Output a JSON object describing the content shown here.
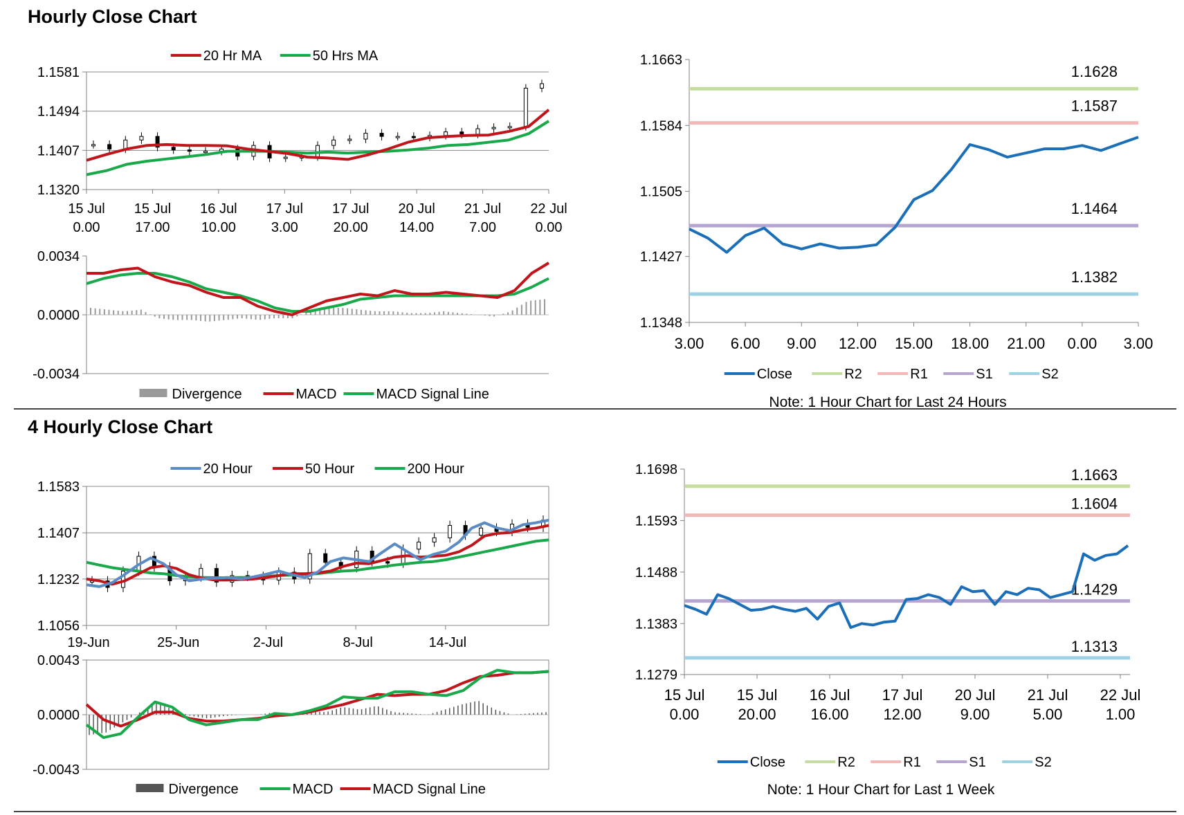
{
  "sections": {
    "hourly_title": "Hourly Close Chart",
    "four_hourly_title": "4 Hourly Close Chart"
  },
  "colors": {
    "red": "#C0151B",
    "green": "#19A84A",
    "blue": "#1A6FB8",
    "steel": "#5B8BC5",
    "r2": "#C6DDA1",
    "r1": "#F2B8B8",
    "s1": "#B6A5D0",
    "s2": "#9CD2E2",
    "bar": "#9A9A9A"
  },
  "chart_data": [
    {
      "id": "hourly_price",
      "type": "candlestick",
      "ylim": [
        1.132,
        1.1581
      ],
      "yticks": [
        "1.1581",
        "1.1494",
        "1.1407",
        "1.1320"
      ],
      "ytick_values": [
        1.1581,
        1.1494,
        1.1407,
        1.132
      ],
      "xticks": [
        [
          "15 Jul",
          "0.00"
        ],
        [
          "15 Jul",
          "17.00"
        ],
        [
          "16 Jul",
          "10.00"
        ],
        [
          "17 Jul",
          "3.00"
        ],
        [
          "17 Jul",
          "20.00"
        ],
        [
          "20 Jul",
          "14.00"
        ],
        [
          "21 Jul",
          "7.00"
        ],
        [
          "22 Jul",
          "0.00"
        ]
      ],
      "legend": [
        "20 Hr MA",
        "50 Hrs MA"
      ],
      "series": [
        {
          "name": "20 Hr MA",
          "color": "red",
          "values": [
            1.1385,
            1.1398,
            1.141,
            1.1418,
            1.142,
            1.1418,
            1.1418,
            1.1417,
            1.141,
            1.1405,
            1.14,
            1.1392,
            1.139,
            1.1387,
            1.1397,
            1.141,
            1.1425,
            1.1435,
            1.1438,
            1.144,
            1.1441,
            1.1449,
            1.146,
            1.1497
          ]
        },
        {
          "name": "50 Hrs MA",
          "color": "green",
          "values": [
            1.1353,
            1.1362,
            1.1376,
            1.1383,
            1.1388,
            1.1393,
            1.1398,
            1.1405,
            1.1405,
            1.1405,
            1.1403,
            1.1401,
            1.1403,
            1.1401,
            1.1403,
            1.1405,
            1.1408,
            1.1412,
            1.1418,
            1.142,
            1.1425,
            1.143,
            1.1444,
            1.1472
          ]
        },
        {
          "name": "Close",
          "color": "black",
          "values": [
            1.142,
            1.141,
            1.143,
            1.1438,
            1.1414,
            1.1408,
            1.1405,
            1.1405,
            1.141,
            1.1394,
            1.1418,
            1.139,
            1.1392,
            1.1393,
            1.1418,
            1.143,
            1.1432,
            1.1445,
            1.1438,
            1.1438,
            1.1436,
            1.144,
            1.1448,
            1.1443,
            1.1455,
            1.1458,
            1.146,
            1.1545,
            1.1555
          ]
        }
      ]
    },
    {
      "id": "hourly_macd",
      "type": "line+bar",
      "ylim": [
        -0.0034,
        0.0034
      ],
      "yticks": [
        "0.0034",
        "0.0000",
        "-0.0034"
      ],
      "ytick_values": [
        0.0034,
        0.0,
        -0.0034
      ],
      "legend": [
        "Divergence",
        "MACD",
        "MACD Signal Line"
      ],
      "series": [
        {
          "name": "MACD",
          "color": "red",
          "values": [
            0.0024,
            0.0024,
            0.0026,
            0.0027,
            0.0022,
            0.0019,
            0.0017,
            0.0013,
            0.001,
            0.001,
            0.0005,
            0.0002,
            0.0,
            0.0004,
            0.0008,
            0.001,
            0.0012,
            0.0011,
            0.0014,
            0.0012,
            0.0012,
            0.0013,
            0.0012,
            0.0011,
            0.001,
            0.0014,
            0.0024,
            0.003
          ]
        },
        {
          "name": "MACD Signal Line",
          "color": "green",
          "values": [
            0.0018,
            0.0021,
            0.0023,
            0.0024,
            0.0024,
            0.0022,
            0.0019,
            0.0015,
            0.0013,
            0.0011,
            0.0008,
            0.0004,
            0.0002,
            0.0002,
            0.0004,
            0.0006,
            0.0009,
            0.001,
            0.0011,
            0.0011,
            0.0011,
            0.0011,
            0.0011,
            0.0011,
            0.0011,
            0.0012,
            0.0016,
            0.0021
          ]
        },
        {
          "name": "Divergence",
          "color": "bar",
          "values": [
            0.0004,
            0.0003,
            0.0002,
            0.0003,
            -0.0002,
            -0.0003,
            -0.0003,
            -0.0004,
            -0.0003,
            -0.0002,
            -0.0003,
            -0.0002,
            -0.0002,
            0.0002,
            0.0004,
            0.0004,
            0.0003,
            0.0002,
            0.0002,
            0.0001,
            0.0001,
            0.0002,
            0.0001,
            0.0,
            -0.0001,
            0.0002,
            0.0008,
            0.0009
          ]
        }
      ]
    },
    {
      "id": "hourly_pivot",
      "type": "line",
      "ylim": [
        1.1348,
        1.1663
      ],
      "yticks": [
        "1.1663",
        "1.1584",
        "1.1505",
        "1.1427",
        "1.1348"
      ],
      "ytick_values": [
        1.1663,
        1.1584,
        1.1505,
        1.1427,
        1.1348
      ],
      "xticks": [
        "3.00",
        "6.00",
        "9.00",
        "12.00",
        "15.00",
        "18.00",
        "21.00",
        "0.00",
        "3.00"
      ],
      "levels": [
        {
          "name": "R2",
          "value": 1.1628,
          "label": "1.1628",
          "color": "r2"
        },
        {
          "name": "R1",
          "value": 1.1587,
          "label": "1.1587",
          "color": "r1"
        },
        {
          "name": "S1",
          "value": 1.1464,
          "label": "1.1464",
          "color": "s1"
        },
        {
          "name": "S2",
          "value": 1.1382,
          "label": "1.1382",
          "color": "s2"
        }
      ],
      "series": [
        {
          "name": "Close",
          "color": "blue",
          "values": [
            1.146,
            1.1449,
            1.1432,
            1.1452,
            1.1461,
            1.1442,
            1.1436,
            1.1442,
            1.1437,
            1.1438,
            1.1441,
            1.1462,
            1.1495,
            1.1506,
            1.1531,
            1.1561,
            1.1555,
            1.1546,
            1.1551,
            1.1556,
            1.1556,
            1.156,
            1.1554,
            1.1562,
            1.157
          ]
        }
      ],
      "legend": [
        "Close",
        "R2",
        "R1",
        "S1",
        "S2"
      ],
      "note": "Note: 1 Hour Chart for Last 24 Hours"
    },
    {
      "id": "four_hourly_price",
      "type": "candlestick",
      "ylim": [
        1.1056,
        1.1583
      ],
      "yticks": [
        "1.1583",
        "1.1407",
        "1.1232",
        "1.1056"
      ],
      "ytick_values": [
        1.1583,
        1.1407,
        1.1232,
        1.1056
      ],
      "xticks": [
        "19-Jun",
        "25-Jun",
        "2-Jul",
        "8-Jul",
        "14-Jul"
      ],
      "legend": [
        "20 Hour",
        "50 Hour",
        "200 Hour"
      ],
      "series": [
        {
          "name": "20 Hour",
          "color": "steel",
          "values": [
            1.121,
            1.1203,
            1.1218,
            1.125,
            1.1285,
            1.1312,
            1.129,
            1.1248,
            1.1225,
            1.1232,
            1.1235,
            1.1238,
            1.1232,
            1.124,
            1.125,
            1.1262,
            1.1248,
            1.1238,
            1.1258,
            1.1298,
            1.1312,
            1.1305,
            1.1298,
            1.1332,
            1.1365,
            1.1335,
            1.1305,
            1.1325,
            1.1338,
            1.1372,
            1.1425,
            1.1445,
            1.1425,
            1.1415,
            1.1438,
            1.1445,
            1.1455
          ]
        },
        {
          "name": "50 Hour",
          "color": "red",
          "values": [
            1.1232,
            1.1225,
            1.1212,
            1.1225,
            1.125,
            1.1275,
            1.1282,
            1.1272,
            1.1248,
            1.1235,
            1.1228,
            1.1228,
            1.123,
            1.1232,
            1.1238,
            1.1245,
            1.1252,
            1.1252,
            1.1255,
            1.1262,
            1.128,
            1.1292,
            1.129,
            1.1302,
            1.1315,
            1.132,
            1.1315,
            1.1318,
            1.1322,
            1.1335,
            1.136,
            1.1395,
            1.1405,
            1.1408,
            1.1418,
            1.1425,
            1.1435
          ]
        },
        {
          "name": "200 Hour",
          "color": "green",
          "values": [
            1.1295,
            1.1285,
            1.1275,
            1.1268,
            1.1262,
            1.1255,
            1.1252,
            1.1245,
            1.124,
            1.1238,
            1.1237,
            1.1237,
            1.1238,
            1.1238,
            1.1242,
            1.1245,
            1.1247,
            1.125,
            1.1252,
            1.1258,
            1.1262,
            1.1265,
            1.1272,
            1.1278,
            1.1285,
            1.129,
            1.1295,
            1.1298,
            1.1305,
            1.1315,
            1.1325,
            1.1335,
            1.1345,
            1.1355,
            1.1365,
            1.1375,
            1.138
          ]
        },
        {
          "name": "Close",
          "color": "black",
          "values": [
            1.1225,
            1.12,
            1.1262,
            1.1318,
            1.1278,
            1.1225,
            1.124,
            1.1272,
            1.122,
            1.1245,
            1.1242,
            1.1228,
            1.1258,
            1.1232,
            1.1328,
            1.1295,
            1.1275,
            1.1338,
            1.1298,
            1.1292,
            1.1345,
            1.1372,
            1.1388,
            1.1435,
            1.1398,
            1.1425,
            1.1412,
            1.144,
            1.1428,
            1.1455
          ]
        }
      ]
    },
    {
      "id": "four_hourly_macd",
      "type": "line+bar",
      "ylim": [
        -0.0043,
        0.0043
      ],
      "yticks": [
        "0.0043",
        "0.0000",
        "-0.0043"
      ],
      "ytick_values": [
        0.0043,
        0.0,
        -0.0043
      ],
      "legend": [
        "Divergence",
        "MACD",
        "MACD Signal Line"
      ],
      "series": [
        {
          "name": "MACD",
          "color": "green",
          "values": [
            -0.0008,
            -0.0018,
            -0.0015,
            -0.0002,
            0.001,
            0.0006,
            -0.0004,
            -0.0008,
            -0.0006,
            -0.0004,
            -0.0004,
            0.0001,
            0.0,
            0.0003,
            0.0007,
            0.0014,
            0.0013,
            0.0013,
            0.0018,
            0.0018,
            0.0016,
            0.0015,
            0.0019,
            0.0029,
            0.0035,
            0.0033,
            0.0033,
            0.0034
          ]
        },
        {
          "name": "MACD Signal Line",
          "color": "red",
          "values": [
            0.0008,
            -0.0004,
            -0.0009,
            -0.0004,
            0.0002,
            0.0002,
            -0.0003,
            -0.0005,
            -0.0005,
            -0.0004,
            -0.0003,
            -0.0001,
            0.0,
            0.0002,
            0.0005,
            0.0008,
            0.0012,
            0.0016,
            0.0015,
            0.0016,
            0.0016,
            0.0019,
            0.0025,
            0.003,
            0.0031,
            0.0033,
            0.0033,
            0.0034
          ]
        },
        {
          "name": "Divergence",
          "color": "bar",
          "values": [
            -0.0016,
            -0.0014,
            -0.0006,
            0.0002,
            0.0009,
            0.0004,
            -0.0001,
            -0.0003,
            -0.0001,
            0.0,
            0.0,
            0.0002,
            0.0001,
            0.0003,
            0.0002,
            0.0006,
            0.0004,
            0.0007,
            0.0002,
            0.0001,
            0.0,
            0.0004,
            0.0008,
            0.0011,
            0.0004,
            0.0,
            0.0001,
            0.0002
          ]
        }
      ]
    },
    {
      "id": "four_hourly_pivot",
      "type": "line",
      "ylim": [
        1.1279,
        1.1698
      ],
      "yticks": [
        "1.1698",
        "1.1593",
        "1.1488",
        "1.1383",
        "1.1279"
      ],
      "ytick_values": [
        1.1698,
        1.1593,
        1.1488,
        1.1383,
        1.1279
      ],
      "xticks": [
        [
          "15 Jul",
          "0.00"
        ],
        [
          "15 Jul",
          "20.00"
        ],
        [
          "16 Jul",
          "16.00"
        ],
        [
          "17 Jul",
          "12.00"
        ],
        [
          "20 Jul",
          "9.00"
        ],
        [
          "21 Jul",
          "5.00"
        ],
        [
          "22 Jul",
          "1.00"
        ]
      ],
      "levels": [
        {
          "name": "R2",
          "value": 1.1663,
          "label": "1.1663",
          "color": "r2"
        },
        {
          "name": "R1",
          "value": 1.1604,
          "label": "1.1604",
          "color": "r1"
        },
        {
          "name": "S1",
          "value": 1.1429,
          "label": "1.1429",
          "color": "s1"
        },
        {
          "name": "S2",
          "value": 1.1313,
          "label": "1.1313",
          "color": "s2"
        }
      ],
      "series": [
        {
          "name": "Close",
          "color": "blue",
          "values": [
            1.142,
            1.1412,
            1.1402,
            1.1442,
            1.1434,
            1.1422,
            1.141,
            1.1412,
            1.1418,
            1.1412,
            1.1408,
            1.1414,
            1.1392,
            1.1418,
            1.1425,
            1.1375,
            1.1383,
            1.138,
            1.1386,
            1.1388,
            1.1432,
            1.1434,
            1.1442,
            1.1436,
            1.1422,
            1.1458,
            1.1448,
            1.145,
            1.1422,
            1.1448,
            1.1442,
            1.1455,
            1.1452,
            1.1436,
            1.1442,
            1.1448,
            1.1525,
            1.1512,
            1.1522,
            1.1525,
            1.1542
          ]
        }
      ],
      "legend": [
        "Close",
        "R2",
        "R1",
        "S1",
        "S2"
      ],
      "note": "Note: 1 Hour Chart for Last 1 Week"
    }
  ]
}
